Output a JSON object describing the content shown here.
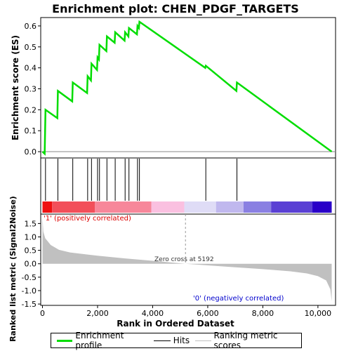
{
  "chart_data": {
    "type": "line",
    "title": "Enrichment plot: CHEN_PDGF_TARGETS",
    "xlabel": "Rank in Ordered Dataset",
    "ylabel_top": "Enrichment score (ES)",
    "ylabel_bottom": "Ranked list metric (Signal2Noise)",
    "xlim": [
      0,
      10500
    ],
    "top_ylim": [
      -0.03,
      0.64
    ],
    "bottom_ylim": [
      -1.55,
      1.85
    ],
    "x_ticks": [
      0,
      2000,
      4000,
      6000,
      8000,
      10000
    ],
    "x_tick_labels": [
      "0",
      "2,000",
      "4,000",
      "6,000",
      "8,000",
      "10,000"
    ],
    "top_y_ticks": [
      0.0,
      0.1,
      0.2,
      0.3,
      0.4,
      0.5,
      0.6
    ],
    "top_y_tick_labels": [
      "0.0",
      "0.1",
      "0.2",
      "0.3",
      "0.4",
      "0.5",
      "0.6"
    ],
    "bottom_y_ticks": [
      -1.5,
      -1.0,
      -0.5,
      0.0,
      0.5,
      1.0,
      1.5
    ],
    "bottom_y_tick_labels": [
      "-1.5",
      "-1.0",
      "-0.5",
      "0.0",
      "0.5",
      "1.0",
      "1.5"
    ],
    "enrichment_profile": {
      "name": "Enrichment profile",
      "color": "#00dd00",
      "points": [
        [
          0,
          0.0
        ],
        [
          80,
          -0.01
        ],
        [
          110,
          0.2
        ],
        [
          540,
          0.16
        ],
        [
          560,
          0.29
        ],
        [
          1080,
          0.24
        ],
        [
          1100,
          0.33
        ],
        [
          1620,
          0.28
        ],
        [
          1640,
          0.36
        ],
        [
          1760,
          0.34
        ],
        [
          1780,
          0.42
        ],
        [
          1980,
          0.39
        ],
        [
          2000,
          0.45
        ],
        [
          2050,
          0.44
        ],
        [
          2070,
          0.51
        ],
        [
          2320,
          0.48
        ],
        [
          2340,
          0.55
        ],
        [
          2620,
          0.52
        ],
        [
          2640,
          0.57
        ],
        [
          2980,
          0.53
        ],
        [
          3000,
          0.57
        ],
        [
          3120,
          0.55
        ],
        [
          3140,
          0.59
        ],
        [
          3430,
          0.56
        ],
        [
          3450,
          0.6
        ],
        [
          3500,
          0.59
        ],
        [
          3520,
          0.62
        ],
        [
          5910,
          0.4
        ],
        [
          5930,
          0.41
        ],
        [
          7040,
          0.29
        ],
        [
          7060,
          0.33
        ],
        [
          10500,
          0.0
        ]
      ]
    },
    "hits": {
      "name": "Hits",
      "positions": [
        110,
        560,
        1100,
        1640,
        1780,
        2000,
        2070,
        2340,
        2640,
        3000,
        3140,
        3450,
        3520,
        5930,
        7060
      ]
    },
    "ranking_metric": {
      "name": "Ranking metric scores",
      "color": "#c0c0c0",
      "zero_cross": 5192,
      "points": [
        [
          0,
          1.75
        ],
        [
          30,
          1.2
        ],
        [
          100,
          0.95
        ],
        [
          300,
          0.7
        ],
        [
          600,
          0.52
        ],
        [
          1000,
          0.42
        ],
        [
          2000,
          0.3
        ],
        [
          3000,
          0.2
        ],
        [
          4000,
          0.11
        ],
        [
          5192,
          0.0
        ],
        [
          6000,
          -0.06
        ],
        [
          7000,
          -0.13
        ],
        [
          8000,
          -0.2
        ],
        [
          9000,
          -0.28
        ],
        [
          9600,
          -0.36
        ],
        [
          10000,
          -0.46
        ],
        [
          10300,
          -0.62
        ],
        [
          10450,
          -0.95
        ],
        [
          10500,
          -1.4
        ]
      ]
    },
    "colorbar": {
      "segments": [
        {
          "x0": 0,
          "x1": 350,
          "color": "#ee1111"
        },
        {
          "x0": 350,
          "x1": 1900,
          "color": "#f24f5a"
        },
        {
          "x0": 1900,
          "x1": 3950,
          "color": "#f7879a"
        },
        {
          "x0": 3950,
          "x1": 5150,
          "color": "#fac0e0"
        },
        {
          "x0": 5150,
          "x1": 6300,
          "color": "#dfdcf6"
        },
        {
          "x0": 6300,
          "x1": 7300,
          "color": "#c0b8ee"
        },
        {
          "x0": 7300,
          "x1": 8300,
          "color": "#8a80e2"
        },
        {
          "x0": 8300,
          "x1": 9800,
          "color": "#5a40d4"
        },
        {
          "x0": 9800,
          "x1": 10500,
          "color": "#2a00c8"
        }
      ]
    },
    "annotations": {
      "positive": "'1' (positively correlated)",
      "negative": "'0' (negatively correlated)",
      "zero_cross": "Zero cross at 5192",
      "positive_color": "#dd0000",
      "negative_color": "#0000cc"
    },
    "legend": {
      "placement": "bottom",
      "items": [
        "Enrichment profile",
        "Hits",
        "Ranking metric scores"
      ]
    }
  }
}
